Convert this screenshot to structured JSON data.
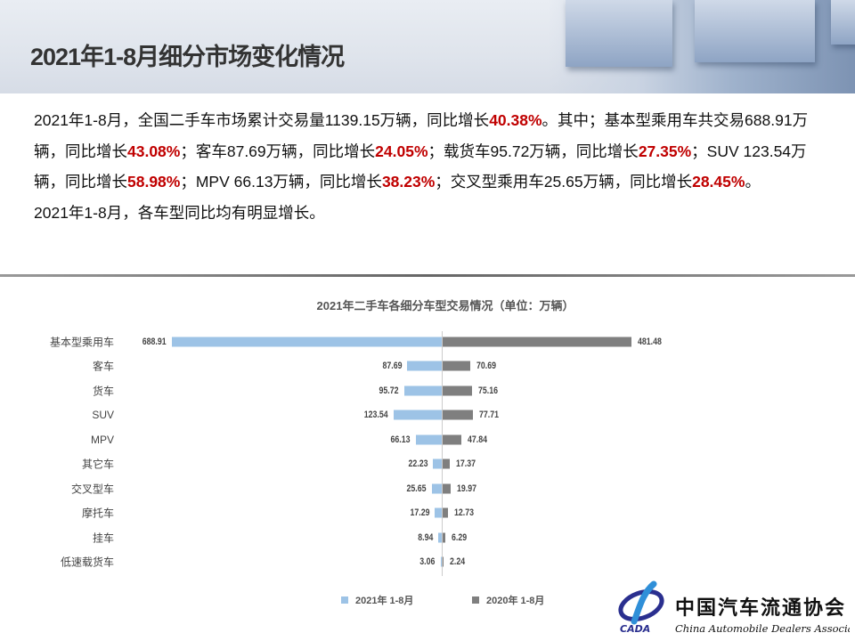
{
  "header": {
    "title": "2021年1-8月细分市场变化情况"
  },
  "summary": {
    "paragraph1": [
      {
        "t": "2021年1-8月，全国二手车市场累计交易量1139.15万辆，同比增长",
        "b": false
      },
      {
        "t": "40.38%",
        "b": true
      },
      {
        "t": "。其中；基本型乘用车共交易688.91万辆，同比增长",
        "b": false
      },
      {
        "t": "43.08%",
        "b": true
      },
      {
        "t": "；客车87.69万辆，同比增长",
        "b": false
      },
      {
        "t": "24.05%",
        "b": true
      },
      {
        "t": "；载货车95.72万辆，同比增长",
        "b": false
      },
      {
        "t": "27.35%",
        "b": true
      },
      {
        "t": "；SUV 123.54万辆，同比增长",
        "b": false
      },
      {
        "t": "58.98%",
        "b": true
      },
      {
        "t": "；MPV 66.13万辆，同比增长",
        "b": false
      },
      {
        "t": "38.23%",
        "b": true
      },
      {
        "t": "；交叉型乘用车25.65万辆，同比增长",
        "b": false
      },
      {
        "t": "28.45%",
        "b": true
      },
      {
        "t": "。",
        "b": false
      }
    ],
    "paragraph2": "2021年1-8月，各车型同比均有明显增长。"
  },
  "colors": {
    "accent": "#c00000",
    "series2021": "#9dc3e6",
    "series2020": "#7f7f7f"
  },
  "chart_data": {
    "type": "bar",
    "orientation": "horizontal-butterfly",
    "title": "2021年二手车各细分车型交易情况（单位：万辆）",
    "categories": [
      "基本型乘用车",
      "客车",
      "货车",
      "SUV",
      "MPV",
      "其它车",
      "交叉型车",
      "摩托车",
      "挂车",
      "低速载货车"
    ],
    "series": [
      {
        "name": "2021年 1-8月",
        "values": [
          688.91,
          87.69,
          95.72,
          123.54,
          66.13,
          22.23,
          25.65,
          17.29,
          8.94,
          3.06
        ],
        "labels": [
          "688.91",
          "87.69",
          "95.72",
          "123.54",
          "66.13",
          "22.23",
          "25.65",
          "17.29",
          "8.94",
          "3.06"
        ]
      },
      {
        "name": "2020年 1-8月",
        "values": [
          481.48,
          70.69,
          75.16,
          77.71,
          47.84,
          17.37,
          19.97,
          12.73,
          6.29,
          2.24
        ],
        "labels": [
          "481.48",
          "70.69",
          "75.16",
          "77.71",
          "47.84",
          "17.37",
          "19.97",
          "12.73",
          "6.29",
          "2.24"
        ]
      }
    ],
    "legend_position": "bottom",
    "grid": false
  },
  "logo": {
    "cn": "中国汽车流通协会",
    "en": "China Automobile Dealers Association",
    "abbr": "CADA"
  }
}
